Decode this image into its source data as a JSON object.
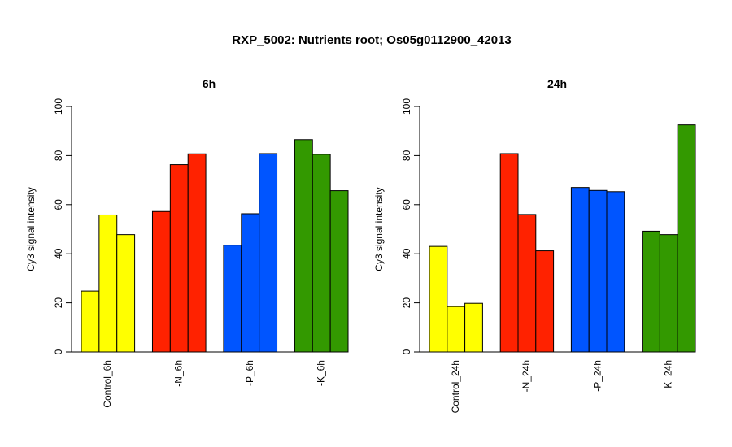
{
  "title": "RXP_5002: Nutrients root; Os05g0112900_42013",
  "chart_data": [
    {
      "type": "bar",
      "title": "6h",
      "ylabel": "Cy3 signal intensity",
      "ylim": [
        0,
        100
      ],
      "yticks": [
        0,
        20,
        40,
        60,
        80,
        100
      ],
      "groups": [
        {
          "label": "Control_6h",
          "color": "#FFFF00",
          "values": [
            24.8,
            55.8,
            47.8
          ]
        },
        {
          "label": "-N_6h",
          "color": "#FF2200",
          "values": [
            57.2,
            76.3,
            80.7
          ]
        },
        {
          "label": "-P_6h",
          "color": "#0055FF",
          "values": [
            43.5,
            56.3,
            80.8
          ]
        },
        {
          "label": "-K_6h",
          "color": "#339900",
          "values": [
            86.5,
            80.5,
            65.7
          ]
        }
      ]
    },
    {
      "type": "bar",
      "title": "24h",
      "ylabel": "Cy3 signal intensity",
      "ylim": [
        0,
        100
      ],
      "yticks": [
        0,
        20,
        40,
        60,
        80,
        100
      ],
      "groups": [
        {
          "label": "Control_24h",
          "color": "#FFFF00",
          "values": [
            43.0,
            18.5,
            19.8
          ]
        },
        {
          "label": "-N_24h",
          "color": "#FF2200",
          "values": [
            80.8,
            56.0,
            41.2
          ]
        },
        {
          "label": "-P_24h",
          "color": "#0055FF",
          "values": [
            67.0,
            65.8,
            65.3
          ]
        },
        {
          "label": "-K_24h",
          "color": "#339900",
          "values": [
            49.2,
            47.8,
            92.5
          ]
        }
      ]
    }
  ]
}
